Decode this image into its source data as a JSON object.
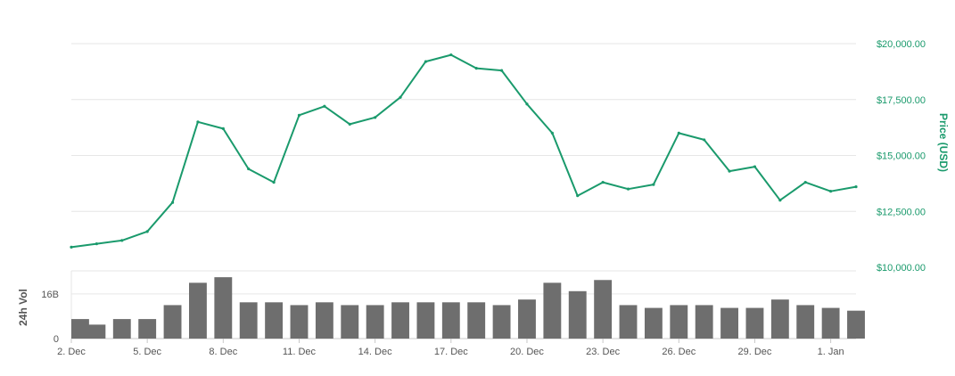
{
  "colors": {
    "price_line": "#1a9a6c",
    "price_axis_text": "#1a9a6c",
    "volume_bars": "#6e6e6e",
    "axis_text": "#555555",
    "grid": "#e6e6e6",
    "volume_label": "#555555"
  },
  "chart_data": {
    "type": "line",
    "x_axis": {
      "ticks": [
        "2. Dec",
        "5. Dec",
        "8. Dec",
        "11. Dec",
        "14. Dec",
        "17. Dec",
        "20. Dec",
        "23. Dec",
        "26. Dec",
        "29. Dec",
        "1. Jan"
      ],
      "range": [
        "2017-12-02",
        "2018-01-02"
      ]
    },
    "price_axis": {
      "label": "Price (USD)",
      "range": [
        10000,
        20000
      ],
      "ticks": [
        "$20,000.00",
        "$17,500.00",
        "$15,000.00",
        "$12,500.00",
        "$10,000.00"
      ],
      "tick_values": [
        20000,
        17500,
        15000,
        12500,
        10000
      ],
      "side": "right"
    },
    "volume_axis": {
      "label": "24h Vol",
      "ticks": [
        "16B",
        "0"
      ],
      "tick_values": [
        16,
        0
      ],
      "range": [
        0,
        23
      ],
      "unit": "B"
    },
    "grid": true,
    "series": [
      {
        "values": [
          {
            "x": "2017-12-02",
            "y": 10900
          },
          {
            "x": "2017-12-03",
            "y": 11050
          },
          {
            "x": "2017-12-04",
            "y": 11200
          },
          {
            "x": "2017-12-05",
            "y": 11600
          },
          {
            "x": "2017-12-06",
            "y": 12900
          },
          {
            "x": "2017-12-07",
            "y": 16500
          },
          {
            "x": "2017-12-08",
            "y": 16200
          },
          {
            "x": "2017-12-09",
            "y": 14400
          },
          {
            "x": "2017-12-10",
            "y": 13800
          },
          {
            "x": "2017-12-11",
            "y": 16800
          },
          {
            "x": "2017-12-12",
            "y": 17200
          },
          {
            "x": "2017-12-13",
            "y": 16400
          },
          {
            "x": "2017-12-14",
            "y": 16700
          },
          {
            "x": "2017-12-15",
            "y": 17600
          },
          {
            "x": "2017-12-16",
            "y": 19200
          },
          {
            "x": "2017-12-17",
            "y": 19500
          },
          {
            "x": "2017-12-18",
            "y": 18900
          },
          {
            "x": "2017-12-19",
            "y": 18800
          },
          {
            "x": "2017-12-20",
            "y": 17300
          },
          {
            "x": "2017-12-21",
            "y": 16000
          },
          {
            "x": "2017-12-22",
            "y": 13200
          },
          {
            "x": "2017-12-23",
            "y": 13800
          },
          {
            "x": "2017-12-24",
            "y": 13500
          },
          {
            "x": "2017-12-25",
            "y": 13700
          },
          {
            "x": "2017-12-26",
            "y": 16000
          },
          {
            "x": "2017-12-27",
            "y": 15700
          },
          {
            "x": "2017-12-28",
            "y": 14300
          },
          {
            "x": "2017-12-29",
            "y": 14500
          },
          {
            "x": "2017-12-30",
            "y": 13000
          },
          {
            "x": "2017-12-31",
            "y": 13800
          },
          {
            "x": "2018-01-01",
            "y": 13400
          },
          {
            "x": "2018-01-02",
            "y": 13600
          }
        ]
      }
    ],
    "volume": {
      "values": [
        {
          "x": "2017-12-02",
          "y": 7
        },
        {
          "x": "2017-12-03",
          "y": 5
        },
        {
          "x": "2017-12-04",
          "y": 7
        },
        {
          "x": "2017-12-05",
          "y": 7
        },
        {
          "x": "2017-12-06",
          "y": 12
        },
        {
          "x": "2017-12-07",
          "y": 20
        },
        {
          "x": "2017-12-08",
          "y": 22
        },
        {
          "x": "2017-12-09",
          "y": 13
        },
        {
          "x": "2017-12-10",
          "y": 13
        },
        {
          "x": "2017-12-11",
          "y": 12
        },
        {
          "x": "2017-12-12",
          "y": 13
        },
        {
          "x": "2017-12-13",
          "y": 12
        },
        {
          "x": "2017-12-14",
          "y": 12
        },
        {
          "x": "2017-12-15",
          "y": 13
        },
        {
          "x": "2017-12-16",
          "y": 13
        },
        {
          "x": "2017-12-17",
          "y": 13
        },
        {
          "x": "2017-12-18",
          "y": 13
        },
        {
          "x": "2017-12-19",
          "y": 12
        },
        {
          "x": "2017-12-20",
          "y": 14
        },
        {
          "x": "2017-12-21",
          "y": 20
        },
        {
          "x": "2017-12-22",
          "y": 17
        },
        {
          "x": "2017-12-23",
          "y": 21
        },
        {
          "x": "2017-12-24",
          "y": 12
        },
        {
          "x": "2017-12-25",
          "y": 11
        },
        {
          "x": "2017-12-26",
          "y": 12
        },
        {
          "x": "2017-12-27",
          "y": 12
        },
        {
          "x": "2017-12-28",
          "y": 11
        },
        {
          "x": "2017-12-29",
          "y": 11
        },
        {
          "x": "2017-12-30",
          "y": 14
        },
        {
          "x": "2017-12-31",
          "y": 12
        },
        {
          "x": "2018-01-01",
          "y": 11
        },
        {
          "x": "2018-01-02",
          "y": 10
        }
      ]
    }
  }
}
